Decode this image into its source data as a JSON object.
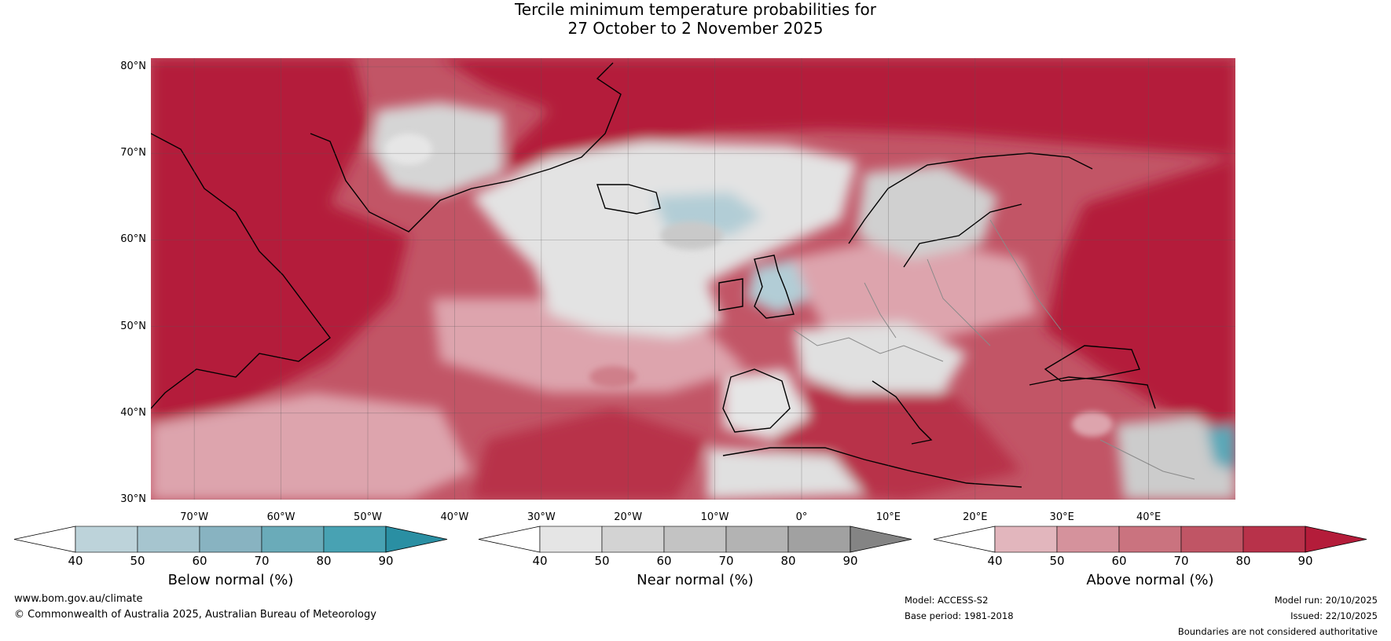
{
  "title": {
    "line1": "Tercile minimum temperature probabilities for",
    "line2": "27 October to 2 November 2025"
  },
  "map": {
    "lat_labels": [
      "80°N",
      "70°N",
      "60°N",
      "50°N",
      "40°N",
      "30°N"
    ],
    "lat_values": [
      80,
      70,
      60,
      50,
      40,
      30
    ],
    "lon_labels": [
      "70°W",
      "60°W",
      "50°W",
      "40°W",
      "30°W",
      "20°W",
      "10°W",
      "0°",
      "10°E",
      "20°E",
      "30°E",
      "40°E"
    ],
    "lon_values": [
      -70,
      -60,
      -50,
      -40,
      -30,
      -20,
      -10,
      0,
      10,
      20,
      30,
      40
    ],
    "lon_range": [
      -75,
      50
    ],
    "lat_range": [
      30,
      81
    ],
    "grid": true
  },
  "colorbars": [
    {
      "title": "Below normal (%)",
      "ticks": [
        "40",
        "50",
        "60",
        "70",
        "80",
        "90"
      ],
      "colors": [
        "#bdd3da",
        "#a6c5cf",
        "#88b3c1",
        "#6aabb9",
        "#48a2b3",
        "#2a8fa3"
      ]
    },
    {
      "title": "Near normal (%)",
      "ticks": [
        "40",
        "50",
        "60",
        "70",
        "80",
        "90"
      ],
      "colors": [
        "#e5e5e5",
        "#d3d3d3",
        "#c3c3c3",
        "#b3b3b3",
        "#a1a1a1",
        "#848484"
      ]
    },
    {
      "title": "Above normal (%)",
      "ticks": [
        "40",
        "50",
        "60",
        "70",
        "80",
        "90"
      ],
      "colors": [
        "#e2b6bd",
        "#d5929c",
        "#ca737f",
        "#c05565",
        "#b8324a",
        "#b41c3a"
      ]
    }
  ],
  "footer": {
    "website": "www.bom.gov.au/climate",
    "copyright": "© Commonwealth of Australia 2025, Australian Bureau of Meteorology",
    "model": "Model: ACCESS-S2",
    "base_period": "Base period: 1981-2018",
    "model_run": "Model run: 20/10/2025",
    "issued": "Issued: 22/10/2025",
    "disclaimer": "Boundaries are not considered authoritative"
  },
  "colors": {
    "above_dark": "#b41c3a",
    "above_mid": "#c8616f",
    "above_light": "#dda4ad",
    "near_light": "#e3e3e3",
    "near_mid": "#d0d0d0",
    "below_light": "#b2cdd6",
    "coast": "#000000",
    "border": "#8a8a8a"
  }
}
